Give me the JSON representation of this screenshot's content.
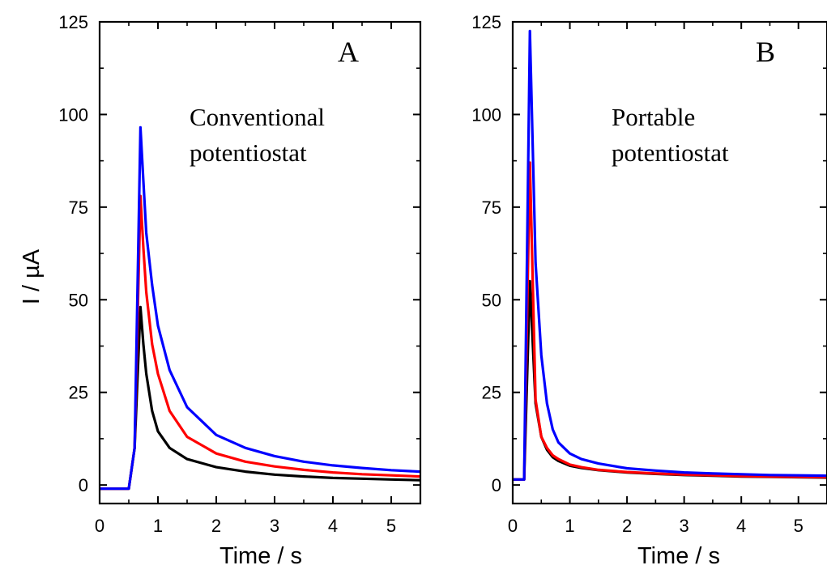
{
  "chart_data": [
    {
      "type": "line",
      "panel": "A",
      "title": "",
      "annotation": [
        "Conventional",
        "potentiostat"
      ],
      "xlabel": "Time / s",
      "ylabel": "I / µA",
      "xlim": [
        0,
        5.5
      ],
      "ylim": [
        -5,
        125
      ],
      "xticks": [
        0,
        1,
        2,
        3,
        4,
        5
      ],
      "yticks": [
        0,
        25,
        50,
        75,
        100,
        125
      ],
      "grid": false,
      "series": [
        {
          "color": "#000000",
          "x": [
            0,
            0.5,
            0.6,
            0.7,
            0.75,
            0.8,
            0.9,
            1.0,
            1.2,
            1.5,
            2.0,
            2.5,
            3.0,
            3.5,
            4.0,
            4.5,
            5.0,
            5.5
          ],
          "y": [
            -1,
            -1,
            10,
            48,
            38,
            30,
            20,
            14.5,
            10,
            7,
            4.8,
            3.6,
            2.8,
            2.3,
            1.9,
            1.7,
            1.5,
            1.3
          ]
        },
        {
          "color": "#ff0000",
          "x": [
            0,
            0.5,
            0.6,
            0.7,
            0.75,
            0.8,
            0.9,
            1.0,
            1.2,
            1.5,
            2.0,
            2.5,
            3.0,
            3.5,
            4.0,
            4.5,
            5.0,
            5.5
          ],
          "y": [
            -1,
            -1,
            10,
            78,
            64,
            52,
            38,
            30,
            20,
            13,
            8.5,
            6.3,
            5,
            4.1,
            3.4,
            2.9,
            2.6,
            2.3
          ]
        },
        {
          "color": "#0000ff",
          "x": [
            0,
            0.5,
            0.6,
            0.7,
            0.75,
            0.8,
            0.9,
            1.0,
            1.2,
            1.5,
            2.0,
            2.5,
            3.0,
            3.5,
            4.0,
            4.5,
            5.0,
            5.5
          ],
          "y": [
            -1,
            -1,
            10,
            96.5,
            82,
            68,
            54,
            43,
            31,
            21,
            13.5,
            10,
            7.8,
            6.3,
            5.3,
            4.6,
            4,
            3.6
          ]
        }
      ]
    },
    {
      "type": "line",
      "panel": "B",
      "title": "",
      "annotation": [
        "Portable",
        "potentiostat"
      ],
      "xlabel": "Time / s",
      "ylabel": "",
      "xlim": [
        0,
        5.5
      ],
      "ylim": [
        -5,
        125
      ],
      "xticks": [
        0,
        1,
        2,
        3,
        4,
        5
      ],
      "yticks": [
        0,
        25,
        50,
        75,
        100,
        125
      ],
      "grid": false,
      "series": [
        {
          "color": "#000000",
          "x": [
            0,
            0.2,
            0.3,
            0.4,
            0.5,
            0.6,
            0.7,
            0.8,
            1.0,
            1.2,
            1.5,
            2.0,
            2.5,
            3.0,
            3.5,
            4.0,
            4.5,
            5.0,
            5.5
          ],
          "y": [
            1.5,
            1.5,
            55,
            22,
            13,
            9.5,
            7.5,
            6.5,
            5.2,
            4.6,
            4,
            3.4,
            3,
            2.7,
            2.5,
            2.3,
            2.2,
            2.1,
            2
          ]
        },
        {
          "color": "#ff0000",
          "x": [
            0,
            0.2,
            0.3,
            0.4,
            0.5,
            0.6,
            0.7,
            0.8,
            1.0,
            1.2,
            1.5,
            2.0,
            2.5,
            3.0,
            3.5,
            4.0,
            4.5,
            5.0,
            5.5
          ],
          "y": [
            1.5,
            1.5,
            87,
            23,
            13,
            10,
            8,
            7,
            5.5,
            4.8,
            4.1,
            3.5,
            3.1,
            2.8,
            2.6,
            2.4,
            2.3,
            2.2,
            2.1
          ]
        },
        {
          "color": "#0000ff",
          "x": [
            0,
            0.2,
            0.3,
            0.4,
            0.5,
            0.6,
            0.7,
            0.8,
            1.0,
            1.2,
            1.5,
            2.0,
            2.5,
            3.0,
            3.5,
            4.0,
            4.5,
            5.0,
            5.5
          ],
          "y": [
            1.5,
            1.5,
            122.5,
            60,
            35,
            22,
            15,
            11.5,
            8.5,
            7,
            5.8,
            4.5,
            3.9,
            3.4,
            3.1,
            2.9,
            2.7,
            2.6,
            2.5
          ]
        }
      ]
    }
  ]
}
